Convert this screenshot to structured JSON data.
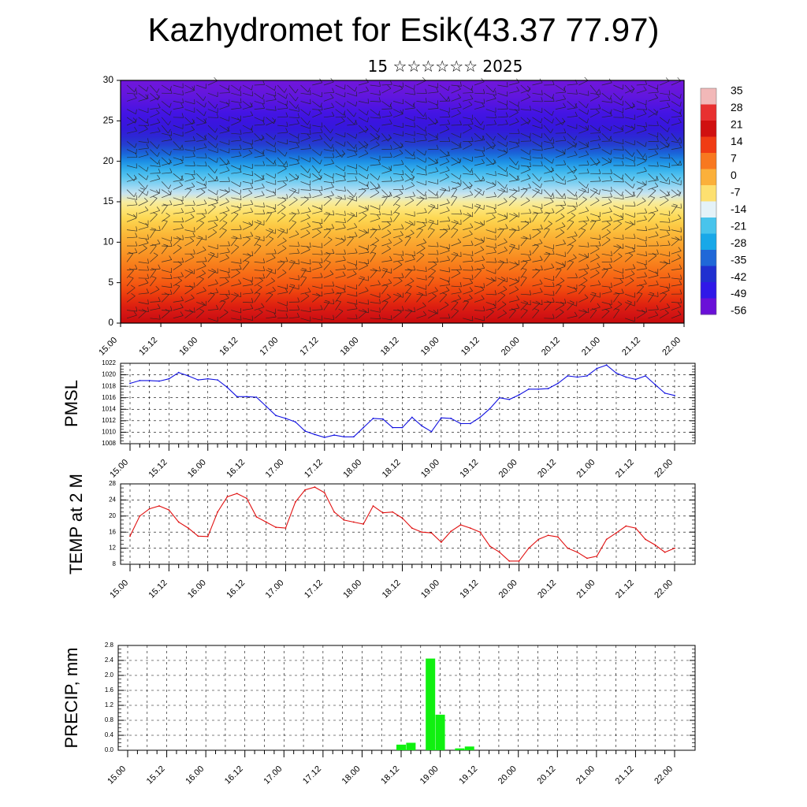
{
  "header": {
    "title": "Kazhydromet for Esik(43.37 77.97)",
    "subtitle": "15 ☆☆☆☆☆☆ 2025"
  },
  "time_ticks": [
    "15.00",
    "15.12",
    "16.00",
    "16.12",
    "17.00",
    "17.12",
    "18.00",
    "18.12",
    "19.00",
    "19.12",
    "20.00",
    "20.12",
    "21.00",
    "21.12",
    "22.00"
  ],
  "chart_data": [
    {
      "type": "heatmap",
      "title": "",
      "x": [
        "15.00",
        "15.12",
        "16.00",
        "16.12",
        "17.00",
        "17.12",
        "18.00",
        "18.12",
        "19.00",
        "19.12",
        "20.00",
        "20.12",
        "21.00",
        "21.12",
        "22.00"
      ],
      "ylim": [
        0,
        30
      ],
      "yticks": [
        "0",
        "5",
        "10",
        "15",
        "20",
        "25",
        "30"
      ],
      "colorbar": {
        "labels": [
          "35",
          "28",
          "21",
          "14",
          "7",
          "0",
          "-7",
          "-14",
          "-21",
          "-28",
          "-35",
          "-42",
          "-49",
          "-56"
        ],
        "colors": [
          "#f2b8b8",
          "#e83030",
          "#d01010",
          "#f03c14",
          "#f87820",
          "#fbb03a",
          "#fde070",
          "#e4f2f8",
          "#48c4ec",
          "#18a8e8",
          "#2068d8",
          "#2030d0",
          "#3018e8",
          "#6a10d8"
        ]
      },
      "row_levels": [
        0,
        1,
        2,
        3,
        4,
        5,
        6,
        7,
        8,
        9,
        10,
        11,
        12,
        13,
        14,
        15,
        16,
        17,
        18,
        19,
        20,
        21,
        22,
        23,
        24,
        25,
        26,
        27,
        28,
        29,
        30
      ],
      "row_values": [
        24,
        23,
        22,
        21,
        19,
        17,
        15,
        13,
        11,
        9,
        7,
        6,
        5,
        3,
        1,
        -2,
        -6,
        -12,
        -18,
        -24,
        -30,
        -36,
        -42,
        -48,
        -54,
        -57,
        -56,
        -52,
        -49,
        -48,
        -48
      ],
      "row_colors": [
        "#c80a0a",
        "#d21414",
        "#dc1e10",
        "#e6300e",
        "#ef460e",
        "#f45a12",
        "#f76a16",
        "#f77a1a",
        "#f88a20",
        "#f99a28",
        "#faa830",
        "#fbb838",
        "#fcc844",
        "#fdd854",
        "#fde474",
        "#f6eca2",
        "#c8e4f0",
        "#90d4f2",
        "#5ac6f0",
        "#34b0ec",
        "#1c8ee4",
        "#1a64d8",
        "#2440d0",
        "#2c28d4",
        "#3418dc",
        "#3c14e0",
        "#4414e4",
        "#5414e0",
        "#6016de",
        "#6a16dc",
        "#7016da"
      ],
      "annotation": "wind barbs"
    },
    {
      "type": "line",
      "ylabel": "PMSL",
      "ylim": [
        1008,
        1022
      ],
      "yticks": [
        "1008",
        "1010",
        "1012",
        "1014",
        "1016",
        "1018",
        "1020",
        "1022"
      ],
      "series": [
        {
          "color": "#1010e0",
          "t": [
            0,
            3,
            6,
            9,
            12,
            15,
            18,
            21,
            24,
            27,
            30,
            33,
            36,
            39,
            42,
            45,
            48,
            51,
            54,
            57,
            60,
            63,
            66,
            69,
            72,
            75,
            78,
            81,
            84,
            87,
            90,
            93,
            96,
            99,
            102,
            105,
            108,
            111,
            114,
            117,
            120,
            123,
            126,
            129,
            132,
            135,
            138,
            141,
            144,
            147,
            150,
            153,
            156,
            159,
            162,
            165,
            168
          ],
          "values": [
            1018.5,
            1019,
            1019,
            1018.9,
            1019.3,
            1020.4,
            1019.8,
            1019.1,
            1019.3,
            1019.1,
            1017.8,
            1016.2,
            1016.2,
            1016.1,
            1014.5,
            1012.9,
            1012.4,
            1011.8,
            1010.2,
            1009.6,
            1009.1,
            1009.5,
            1009.2,
            1009.2,
            1010.8,
            1012.4,
            1012.3,
            1010.8,
            1010.8,
            1012.6,
            1011.1,
            1010.1,
            1012.5,
            1012.4,
            1011.5,
            1011.5,
            1012.6,
            1014.1,
            1016.0,
            1015.7,
            1016.5,
            1017.5,
            1017.5,
            1017.6,
            1018.5,
            1019.8,
            1019.6,
            1019.8,
            1021.1,
            1021.7,
            1020.3,
            1019.6,
            1019.2,
            1019.8,
            1018.3,
            1016.8,
            1016.4
          ]
        }
      ]
    },
    {
      "type": "line",
      "ylabel": "TEMP at 2 M",
      "ylim": [
        8,
        28
      ],
      "yticks": [
        "8",
        "12",
        "16",
        "20",
        "24",
        "28"
      ],
      "series": [
        {
          "color": "#e01010",
          "t": [
            0,
            3,
            6,
            9,
            12,
            15,
            18,
            21,
            24,
            27,
            30,
            33,
            36,
            39,
            42,
            45,
            48,
            51,
            54,
            57,
            60,
            63,
            66,
            69,
            72,
            75,
            78,
            81,
            84,
            87,
            90,
            93,
            96,
            99,
            102,
            105,
            108,
            111,
            114,
            117,
            120,
            123,
            126,
            129,
            132,
            135,
            138,
            141,
            144,
            147,
            150,
            153,
            156,
            159,
            162,
            165,
            168
          ],
          "values": [
            15,
            20,
            21.8,
            22.5,
            21.5,
            18.5,
            17,
            15,
            14.9,
            21,
            24.8,
            25.6,
            24.4,
            19.8,
            18.5,
            17.2,
            17,
            23.5,
            26.5,
            27.2,
            25.8,
            21,
            19,
            18.5,
            18,
            22.5,
            20.8,
            21,
            19.5,
            17,
            16,
            15.8,
            13.5,
            16.2,
            17.8,
            17,
            16,
            12.5,
            11,
            8.8,
            8.8,
            12,
            14.2,
            15.2,
            14.8,
            12,
            11,
            9.5,
            10,
            14.2,
            15.8,
            17.5,
            17,
            14.2,
            12.8,
            11,
            12
          ]
        }
      ]
    },
    {
      "type": "bar",
      "ylabel": "PRECIP, mm",
      "ylim": [
        0,
        2.8
      ],
      "yticks": [
        "0.0",
        "0.4",
        "0.8",
        "1.2",
        "1.6",
        "2.0",
        "2.4",
        "2.8"
      ],
      "bar_color": "#10f010",
      "bars": [
        {
          "t": 84,
          "value": 0.15
        },
        {
          "t": 87,
          "value": 0.2
        },
        {
          "t": 93,
          "value": 2.45
        },
        {
          "t": 96,
          "value": 0.95
        },
        {
          "t": 102,
          "value": 0.05
        },
        {
          "t": 105,
          "value": 0.1
        }
      ]
    }
  ]
}
